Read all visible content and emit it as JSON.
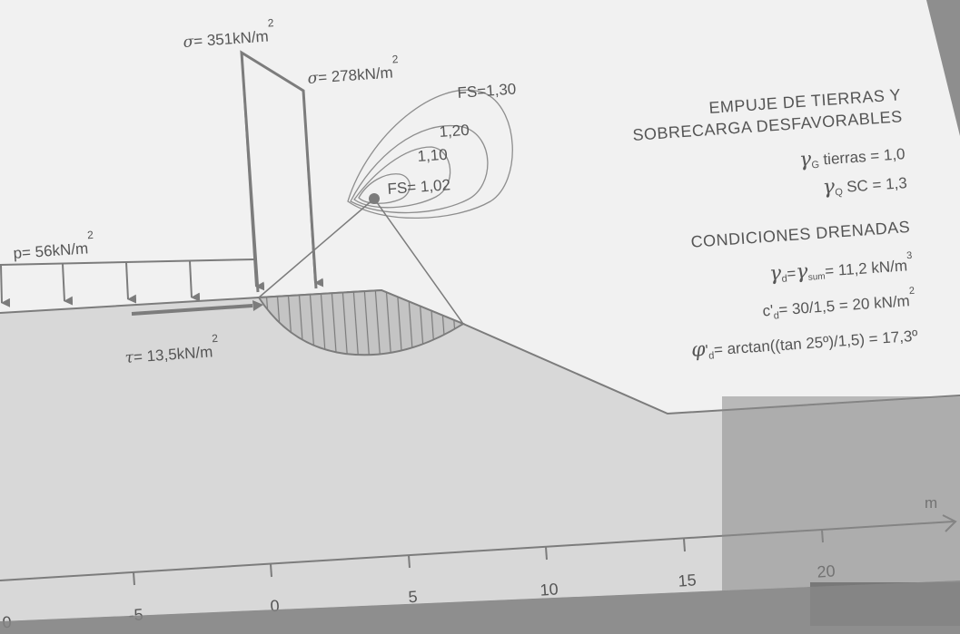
{
  "loads": {
    "sigma_left": {
      "symbol": "σ",
      "text": "= 351kN/m",
      "exp": "2"
    },
    "sigma_right": {
      "symbol": "σ",
      "text": "= 278kN/m",
      "exp": "2"
    },
    "p": {
      "text": "p= 56kN/m",
      "exp": "2"
    },
    "tau": {
      "symbol": "τ",
      "text": "= 13,5kN/m",
      "exp": "2"
    }
  },
  "contours": [
    {
      "label": "FS=1,30",
      "value": 1.3
    },
    {
      "label": "1,20",
      "value": 1.2
    },
    {
      "label": "1,10",
      "value": 1.1
    },
    {
      "label": "FS= 1,02",
      "value": 1.02
    }
  ],
  "notes": {
    "title_1": "EMPUJE DE TIERRAS Y",
    "title_2": "SOBRECARGA DESFAVORABLES",
    "gamma_g": {
      "symbol": "γ",
      "sub": "G",
      "text": " tierras = 1,0"
    },
    "gamma_q": {
      "symbol": "γ",
      "sub": "Q",
      "text": " SC = 1,3"
    },
    "drained": "CONDICIONES DRENADAS",
    "gamma_d": {
      "symbol": "γ",
      "sub": "d",
      "eq": "=",
      "symbol2": "γ",
      "sub2": "sum",
      "text": "= 11,2 kN/m",
      "exp": "3"
    },
    "c_d": {
      "text": "c'",
      "sub": "d",
      "text2": "= 30/1,5 = 20 kN/m",
      "exp": "2"
    },
    "phi_d": {
      "symbol": "φ",
      "text": "'",
      "sub": "d",
      "text2": "= arctan((tan 25º)/1,5) = 17,3º"
    }
  },
  "axis": {
    "unit": "m",
    "ticks": [
      "0",
      "-5",
      "0",
      "5",
      "10",
      "15",
      "20"
    ]
  },
  "colors": {
    "background": "#f1f1f1",
    "ground": "#d8d8d8",
    "lines": "#7c7c7c",
    "text": "#555555",
    "overlay": "#909090"
  }
}
